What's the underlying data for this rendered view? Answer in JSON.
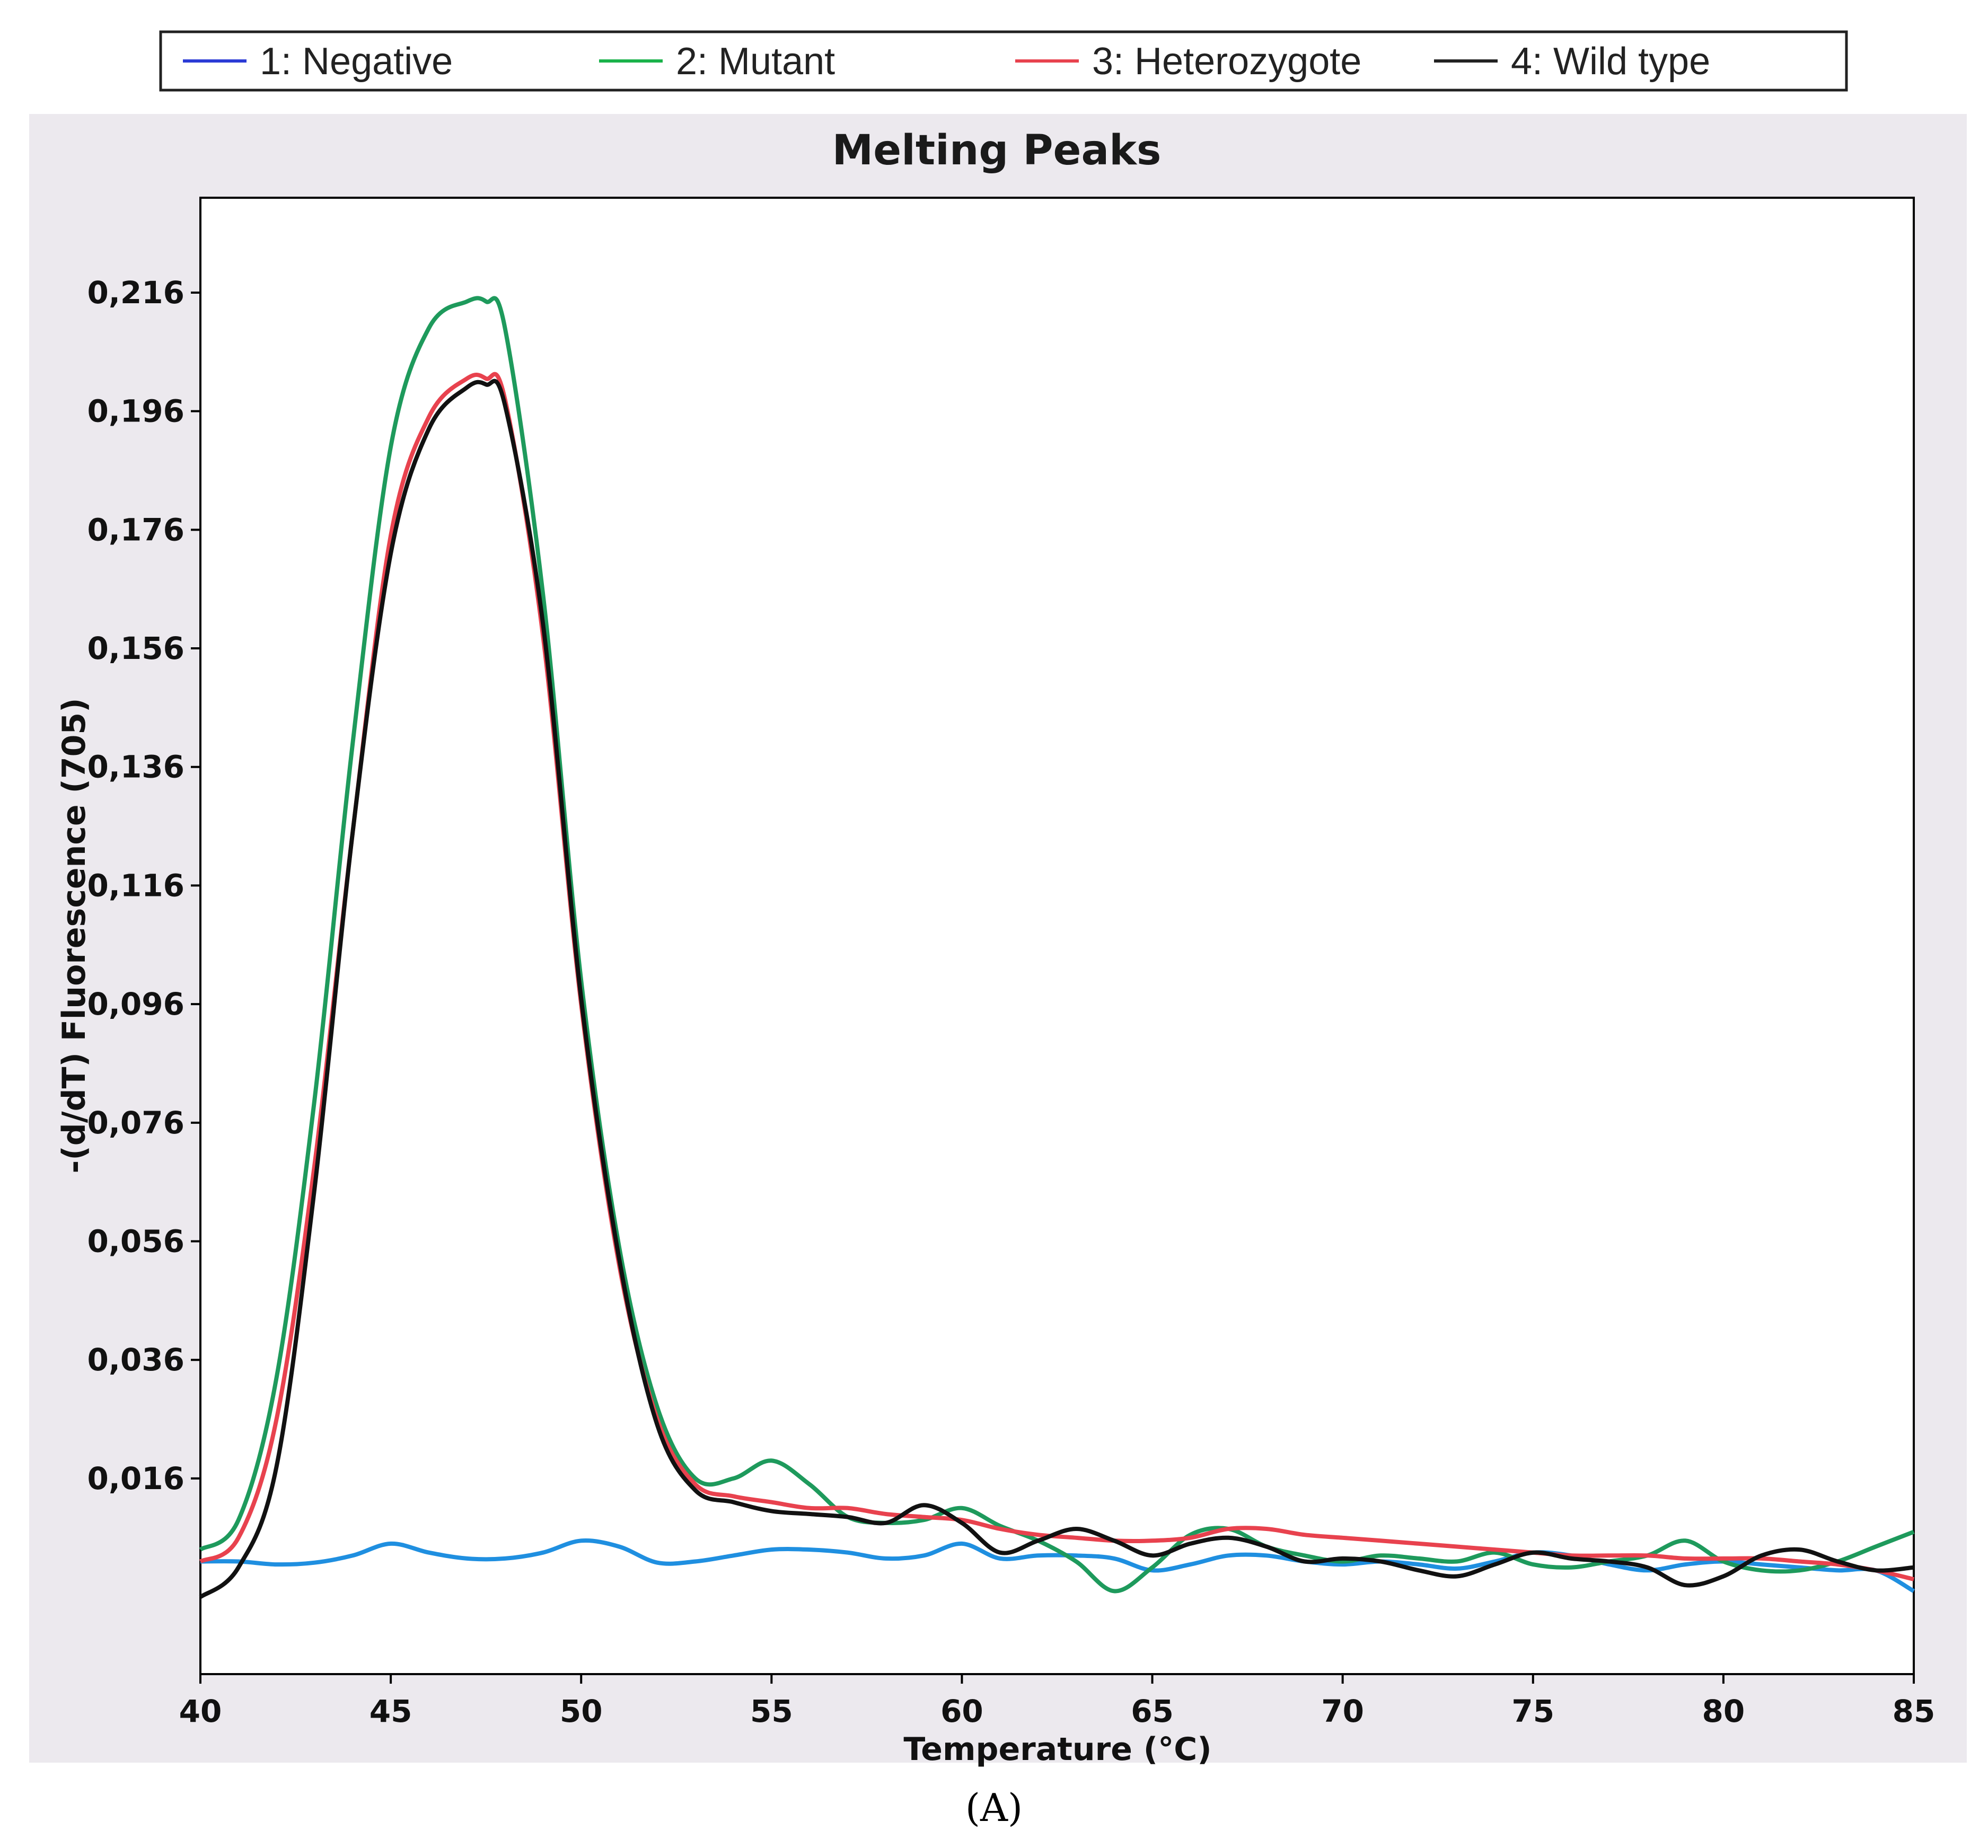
{
  "chart_data": {
    "type": "line",
    "title": "Melting Peaks",
    "xlabel": "Temperature (°C)",
    "ylabel": "-(d/dT) Fluorescence (705)",
    "xlim": [
      40,
      85
    ],
    "ylim": [
      -0.017,
      0.232
    ],
    "xticks": [
      "40",
      "45",
      "50",
      "55",
      "60",
      "65",
      "70",
      "75",
      "80",
      "85"
    ],
    "xtick_values": [
      40,
      45,
      50,
      55,
      60,
      65,
      70,
      75,
      80,
      85
    ],
    "yticks": [
      "0,016",
      "0,036",
      "0,056",
      "0,076",
      "0,096",
      "0,116",
      "0,136",
      "0,156",
      "0,176",
      "0,196",
      "0,216"
    ],
    "ytick_values": [
      0.016,
      0.036,
      0.056,
      0.076,
      0.096,
      0.116,
      0.136,
      0.156,
      0.176,
      0.196,
      0.216
    ],
    "grid": false,
    "legend_position": "top",
    "series": [
      {
        "name": "1: Negative",
        "color": "#1f8fe0",
        "x": [
          40,
          41,
          42,
          43,
          44,
          45,
          46,
          47,
          48,
          49,
          50,
          51,
          52,
          53,
          54,
          55,
          56,
          57,
          58,
          59,
          60,
          61,
          62,
          63,
          64,
          65,
          66,
          67,
          68,
          69,
          70,
          71,
          72,
          73,
          74,
          75,
          76,
          77,
          78,
          79,
          80,
          81,
          82,
          83,
          84,
          85
        ],
        "y": [
          0.002,
          0.002,
          0.0015,
          0.0018,
          0.003,
          0.005,
          0.0035,
          0.0025,
          0.0025,
          0.0035,
          0.0055,
          0.0045,
          0.0018,
          0.002,
          0.003,
          0.004,
          0.004,
          0.0035,
          0.0025,
          0.003,
          0.005,
          0.0025,
          0.003,
          0.003,
          0.0025,
          0.0005,
          0.0015,
          0.003,
          0.003,
          0.002,
          0.0015,
          0.002,
          0.0015,
          0.0008,
          0.002,
          0.0035,
          0.003,
          0.0015,
          0.0005,
          0.0015,
          0.002,
          0.0015,
          0.001,
          0.0005,
          0.0005,
          -0.003
        ]
      },
      {
        "name": "2: Mutant",
        "color": "#1e9a5c",
        "x": [
          40,
          41,
          42,
          43,
          44,
          45,
          46,
          47,
          47.5,
          48,
          49,
          50,
          51,
          52,
          53,
          54,
          55,
          56,
          57,
          58,
          59,
          60,
          61,
          62,
          63,
          64,
          65,
          66,
          67,
          68,
          69,
          70,
          71,
          72,
          73,
          74,
          75,
          76,
          77,
          78,
          79,
          80,
          81,
          82,
          83,
          84,
          85
        ],
        "y": [
          0.004,
          0.009,
          0.033,
          0.08,
          0.14,
          0.19,
          0.21,
          0.2145,
          0.2145,
          0.21,
          0.165,
          0.1,
          0.055,
          0.028,
          0.016,
          0.016,
          0.019,
          0.015,
          0.0095,
          0.0085,
          0.009,
          0.011,
          0.008,
          0.0055,
          0.002,
          -0.003,
          0.001,
          0.0065,
          0.0075,
          0.0045,
          0.003,
          0.002,
          0.003,
          0.0025,
          0.002,
          0.0035,
          0.0015,
          0.001,
          0.002,
          0.003,
          0.0055,
          0.002,
          0.0005,
          0.0005,
          0.002,
          0.0045,
          0.007
        ]
      },
      {
        "name": "3: Heterozygote",
        "color": "#e8424e",
        "x": [
          40,
          41,
          42,
          43,
          44,
          45,
          46,
          47,
          47.5,
          48,
          49,
          50,
          51,
          52,
          53,
          54,
          55,
          56,
          57,
          58,
          59,
          60,
          61,
          62,
          63,
          64,
          65,
          66,
          67,
          68,
          69,
          70,
          71,
          72,
          73,
          74,
          75,
          76,
          77,
          78,
          79,
          80,
          81,
          82,
          83,
          84,
          85
        ],
        "y": [
          0.002,
          0.006,
          0.026,
          0.069,
          0.125,
          0.175,
          0.195,
          0.2015,
          0.2015,
          0.198,
          0.158,
          0.096,
          0.052,
          0.026,
          0.015,
          0.013,
          0.012,
          0.011,
          0.011,
          0.01,
          0.0095,
          0.009,
          0.0075,
          0.0065,
          0.006,
          0.0055,
          0.0055,
          0.006,
          0.0075,
          0.0075,
          0.0065,
          0.006,
          0.0055,
          0.005,
          0.0045,
          0.004,
          0.0035,
          0.003,
          0.003,
          0.003,
          0.0025,
          0.0025,
          0.0025,
          0.002,
          0.0015,
          0.0005,
          -0.001
        ]
      },
      {
        "name": "4: Wild type",
        "color": "#111111",
        "x": [
          40,
          41,
          42,
          43,
          44,
          45,
          46,
          47,
          47.5,
          48,
          49,
          50,
          51,
          52,
          53,
          54,
          55,
          56,
          57,
          58,
          59,
          60,
          61,
          62,
          63,
          64,
          65,
          66,
          67,
          68,
          69,
          70,
          71,
          72,
          73,
          74,
          75,
          76,
          77,
          78,
          79,
          80,
          81,
          82,
          83,
          84,
          85
        ],
        "y": [
          -0.004,
          0.001,
          0.018,
          0.065,
          0.125,
          0.172,
          0.193,
          0.2,
          0.2005,
          0.197,
          0.16,
          0.097,
          0.053,
          0.025,
          0.014,
          0.012,
          0.0105,
          0.01,
          0.0095,
          0.0085,
          0.0115,
          0.0085,
          0.0035,
          0.0055,
          0.0075,
          0.0055,
          0.003,
          0.005,
          0.006,
          0.0045,
          0.002,
          0.0025,
          0.002,
          0.0005,
          -0.0005,
          0.0015,
          0.0035,
          0.0025,
          0.002,
          0.001,
          -0.002,
          -0.0005,
          0.003,
          0.004,
          0.002,
          0.0005,
          0.001
        ]
      }
    ]
  },
  "legend": {
    "items": [
      {
        "label": "1: Negative",
        "color": "#2b3bd6"
      },
      {
        "label": "2: Mutant",
        "color": "#19b24a"
      },
      {
        "label": "3: Heterozygote",
        "color": "#e8424e"
      },
      {
        "label": "4: Wild type",
        "color": "#222222"
      }
    ]
  },
  "caption": "(A)",
  "colors": {
    "panel_background": "#ece9ee",
    "plot_background": "#ffffff",
    "axis": "#000000"
  }
}
